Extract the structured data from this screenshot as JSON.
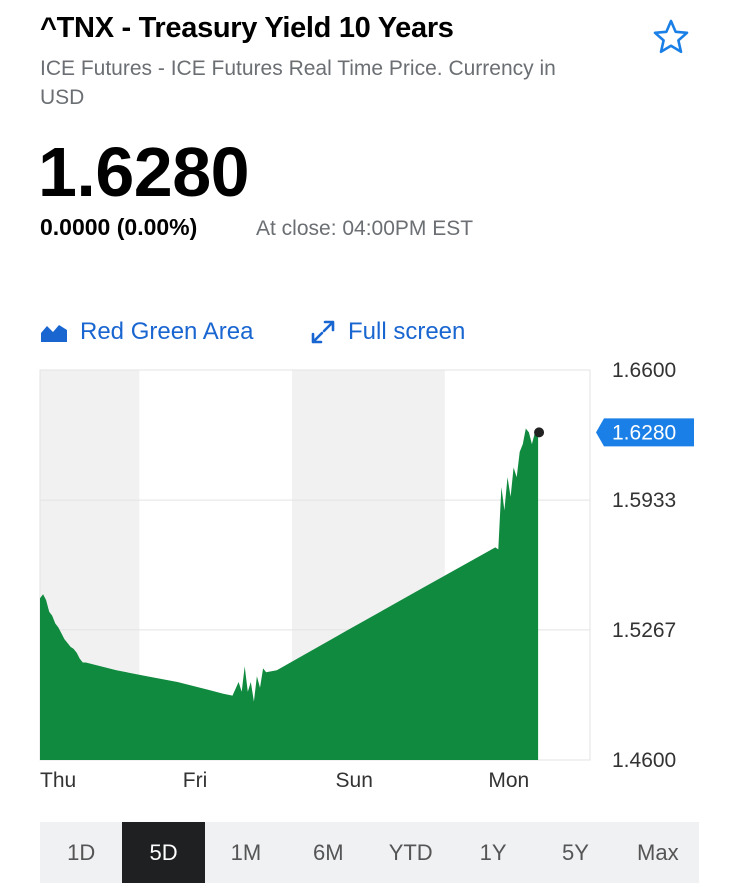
{
  "header": {
    "title": "^TNX - Treasury Yield 10 Years",
    "subtitle": "ICE Futures - ICE Futures Real Time Price. Currency in USD",
    "favorite_icon": "star-outline-icon"
  },
  "quote": {
    "price": "1.6280",
    "change": "0.0000 (0.00%)",
    "close_time": "At close: 04:00PM EST"
  },
  "chart_controls": {
    "chart_type_label": "Red Green Area",
    "chart_type_icon": "area-chart-icon",
    "fullscreen_label": "Full screen",
    "fullscreen_icon": "expand-arrows-icon"
  },
  "ranges": [
    {
      "label": "1D",
      "active": false
    },
    {
      "label": "5D",
      "active": true
    },
    {
      "label": "1M",
      "active": false
    },
    {
      "label": "6M",
      "active": false
    },
    {
      "label": "YTD",
      "active": false
    },
    {
      "label": "1Y",
      "active": false
    },
    {
      "label": "5Y",
      "active": false
    },
    {
      "label": "Max",
      "active": false
    }
  ],
  "colors": {
    "area_fill": "#108a3f",
    "accent_blue": "#1a7fe6",
    "link_blue": "#1a66d1",
    "band_gray": "#f1f1f1"
  },
  "chart_data": {
    "type": "area",
    "title": "",
    "xlabel": "",
    "ylabel": "",
    "ylim": [
      1.46,
      1.66
    ],
    "y_ticks": [
      "1.6600",
      "1.5933",
      "1.5267",
      "1.4600"
    ],
    "x_tick_labels": [
      {
        "label": "Thu",
        "at": 0
      },
      {
        "label": "Fri",
        "at": 1
      },
      {
        "label": "Sun",
        "at": 2
      },
      {
        "label": "Mon",
        "at": 3
      }
    ],
    "x_domain": [
      0,
      3.6
    ],
    "current_value_label": "1.6280",
    "current_value": 1.628,
    "grid": true,
    "series": [
      {
        "values": [
          [
            0.0,
            1.543
          ],
          [
            0.02,
            1.545
          ],
          [
            0.04,
            1.542
          ],
          [
            0.06,
            1.536
          ],
          [
            0.08,
            1.534
          ],
          [
            0.1,
            1.53
          ],
          [
            0.12,
            1.528
          ],
          [
            0.14,
            1.525
          ],
          [
            0.16,
            1.522
          ],
          [
            0.18,
            1.52
          ],
          [
            0.2,
            1.518
          ],
          [
            0.22,
            1.517
          ],
          [
            0.24,
            1.515
          ],
          [
            0.26,
            1.512
          ],
          [
            0.28,
            1.51
          ],
          [
            0.3,
            1.51
          ],
          [
            0.5,
            1.506
          ],
          [
            0.7,
            1.503
          ],
          [
            0.9,
            1.5
          ],
          [
            1.0,
            1.498
          ],
          [
            1.1,
            1.496
          ],
          [
            1.2,
            1.494
          ],
          [
            1.26,
            1.493
          ],
          [
            1.3,
            1.5
          ],
          [
            1.32,
            1.495
          ],
          [
            1.34,
            1.508
          ],
          [
            1.36,
            1.495
          ],
          [
            1.38,
            1.5
          ],
          [
            1.4,
            1.49
          ],
          [
            1.42,
            1.503
          ],
          [
            1.44,
            1.497
          ],
          [
            1.46,
            1.507
          ],
          [
            1.48,
            1.505
          ],
          [
            1.55,
            1.506
          ],
          [
            2.0,
            1.526
          ],
          [
            2.5,
            1.548
          ],
          [
            2.98,
            1.569
          ],
          [
            3.0,
            1.568
          ],
          [
            3.02,
            1.6
          ],
          [
            3.04,
            1.588
          ],
          [
            3.06,
            1.605
          ],
          [
            3.08,
            1.595
          ],
          [
            3.1,
            1.61
          ],
          [
            3.12,
            1.605
          ],
          [
            3.14,
            1.618
          ],
          [
            3.16,
            1.622
          ],
          [
            3.18,
            1.63
          ],
          [
            3.2,
            1.628
          ],
          [
            3.22,
            1.622
          ],
          [
            3.24,
            1.628
          ],
          [
            3.26,
            1.628
          ]
        ]
      }
    ]
  }
}
